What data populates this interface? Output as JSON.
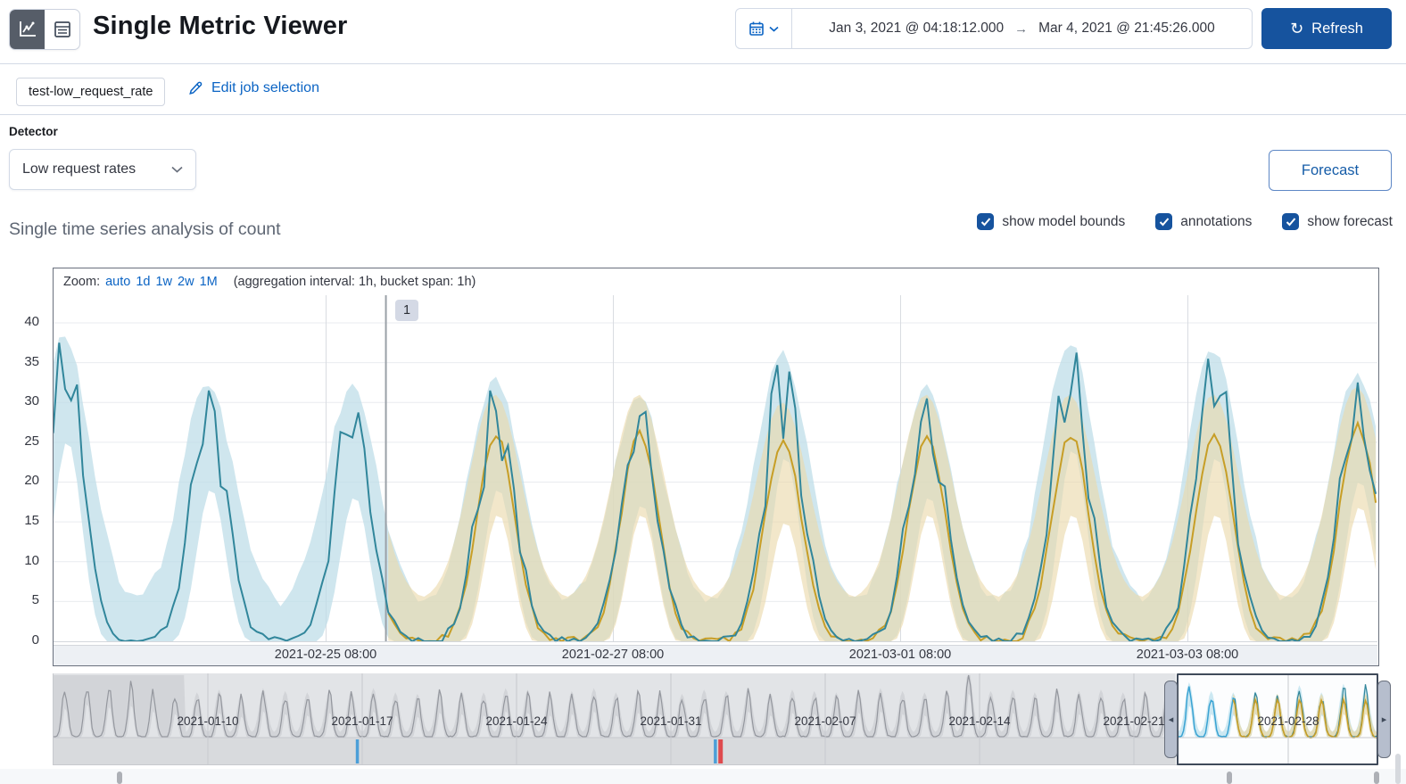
{
  "header": {
    "title": "Single Metric Viewer",
    "view_toggle": {
      "chart_icon": "line-chart-icon",
      "table_icon": "data-table-icon"
    },
    "time_picker": {
      "start": "Jan 3, 2021 @ 04:18:12.000",
      "arrow": "→",
      "end": "Mar 4, 2021 @ 21:45:26.000"
    },
    "refresh_label": "Refresh"
  },
  "job_bar": {
    "job_badge": "test-low_request_rate",
    "edit_link": "Edit job selection"
  },
  "detector": {
    "label": "Detector",
    "selected": "Low request rates"
  },
  "forecast_button": "Forecast",
  "analysis": {
    "title": "Single time series analysis of count",
    "checkboxes": [
      {
        "label": "show model bounds",
        "checked": true
      },
      {
        "label": "annotations",
        "checked": true
      },
      {
        "label": "show forecast",
        "checked": true
      }
    ]
  },
  "chart": {
    "zoom_label": "Zoom:",
    "zoom_links": [
      "auto",
      "1d",
      "1w",
      "2w",
      "1M"
    ],
    "aggregation_note": "(aggregation interval: 1h, bucket span: 1h)",
    "annotation_badge": "1",
    "y_ticks": [
      "40",
      "35",
      "30",
      "25",
      "20",
      "15",
      "10",
      "5",
      "0"
    ],
    "x_ticks": [
      "2021-02-25 08:00",
      "2021-02-27 08:00",
      "2021-03-01 08:00",
      "2021-03-03 08:00"
    ]
  },
  "context": {
    "x_ticks": [
      "2021-01-10",
      "2021-01-17",
      "2021-01-24",
      "2021-01-31",
      "2021-02-07",
      "2021-02-14",
      "2021-02-21",
      "2021-02-28"
    ]
  },
  "colors": {
    "actual_line": "#31869B",
    "model_bounds": "#BDDCE8",
    "forecast_line": "#C79E26",
    "forecast_bounds": "#EAD9A9",
    "link_blue": "#0b64c4",
    "filled_blue": "#16539e",
    "annotation_line": "#9aa0a7",
    "context_line": "#94979e",
    "context_band": "#d2d4d8",
    "context_bg": "#e2e4e7",
    "swimlane_bg": "#d8dadd",
    "anomaly_warning": "#4c9fd8",
    "anomaly_critical": "#df4a4e",
    "brush_blue_line": "#3aa3d3",
    "brush_blue_band": "#bfe2ef"
  },
  "chart_data": {
    "type": "line",
    "title": "Single time series analysis of count",
    "ylabel": "count",
    "ylim": [
      0,
      40
    ],
    "bucket_span": "1h",
    "aggregation_interval": "1h",
    "x_ticks": [
      "2021-02-25 08:00",
      "2021-02-27 08:00",
      "2021-03-01 08:00",
      "2021-03-03 08:00"
    ],
    "series": [
      {
        "name": "actual",
        "color": "#31869B"
      },
      {
        "name": "model bounds",
        "color": "#BDDCE8"
      },
      {
        "name": "forecast",
        "color": "#C79E26"
      },
      {
        "name": "forecast bounds",
        "color": "#EAD9A9"
      }
    ],
    "days": [
      {
        "date": "2021-02-23",
        "actual_peak": 35,
        "forecast_peak": null
      },
      {
        "date": "2021-02-24",
        "actual_peak": 29,
        "forecast_peak": null
      },
      {
        "date": "2021-02-25",
        "actual_peak": 28,
        "forecast_peak": 25
      },
      {
        "date": "2021-02-26",
        "actual_peak": 29,
        "forecast_peak": 26
      },
      {
        "date": "2021-02-27",
        "actual_peak": 27,
        "forecast_peak": 26
      },
      {
        "date": "2021-02-28",
        "actual_peak": 33,
        "forecast_peak": 25
      },
      {
        "date": "2021-03-01",
        "actual_peak": 28,
        "forecast_peak": 26
      },
      {
        "date": "2021-03-02",
        "actual_peak": 34,
        "forecast_peak": 26
      },
      {
        "date": "2021-03-03",
        "actual_peak": 33,
        "forecast_peak": 26
      },
      {
        "date": "2021-03-04",
        "actual_peak": 30,
        "forecast_peak": 27
      }
    ],
    "forecast_start_hour": 55.6,
    "annotation": {
      "id": "1",
      "at_hour": 55.6
    },
    "context": {
      "start_date": "2021-01-03",
      "end_date": "2021-03-04",
      "day_peaks": [
        33,
        36,
        34,
        35,
        31,
        29,
        28,
        30,
        27,
        31,
        29,
        28,
        30,
        29,
        31,
        28,
        27,
        30,
        29,
        28,
        31,
        30,
        28,
        29,
        31,
        28,
        30,
        29,
        27,
        30,
        29,
        31,
        28,
        30,
        29,
        28,
        30,
        31,
        29,
        28,
        30,
        44,
        29,
        30,
        28,
        31,
        29,
        30,
        28,
        29,
        30,
        35,
        29,
        28,
        29,
        27,
        33,
        28,
        34,
        33,
        30
      ],
      "init_band_days": 5.4,
      "anomaly_markers": [
        {
          "frac": 0.229,
          "severity": "warning"
        },
        {
          "frac": 0.4994,
          "severity": "warning"
        },
        {
          "frac": 0.5028,
          "severity": "critical"
        }
      ],
      "annotation_marks_frac": [
        0.0506,
        0.8876,
        0.999
      ],
      "selection": {
        "start_day": 50.9,
        "end_day": 60.3,
        "forecast_start_day": 53.6
      }
    }
  }
}
